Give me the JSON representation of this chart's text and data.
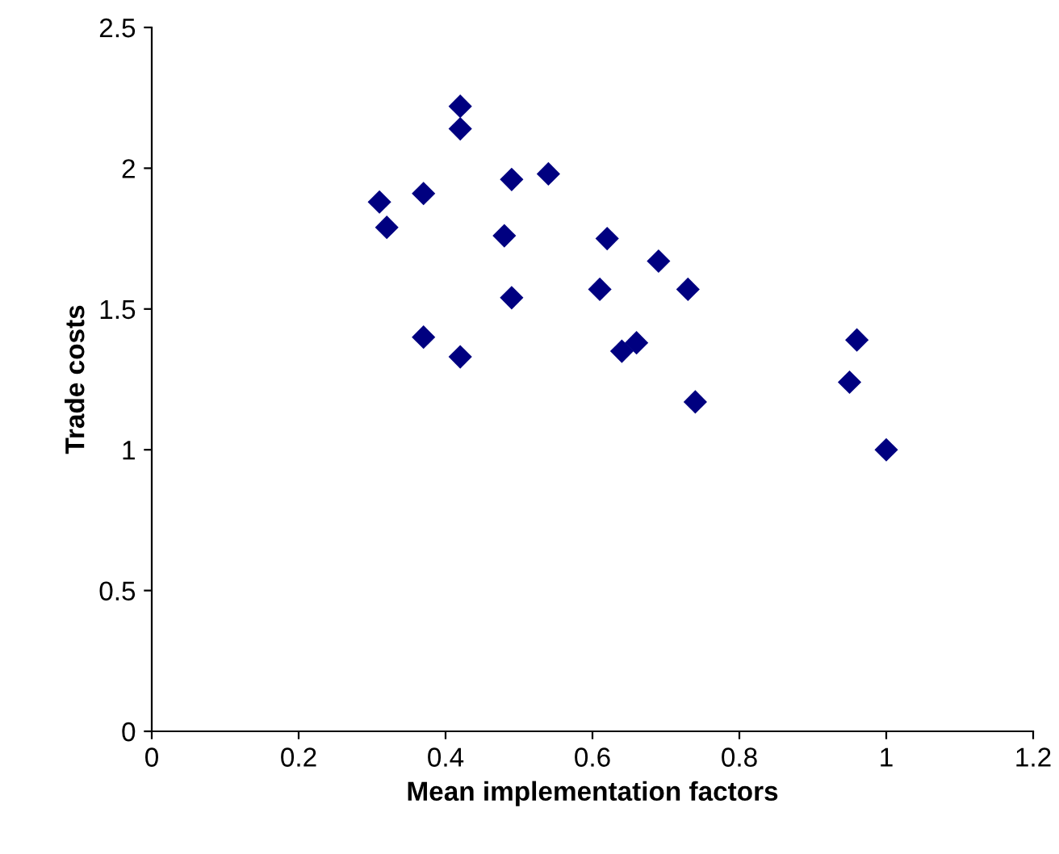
{
  "chart_data": {
    "type": "scatter",
    "xlabel": "Mean implementation factors",
    "ylabel": "Trade costs",
    "x": [
      0.42,
      0.42,
      0.49,
      0.54,
      0.31,
      0.37,
      0.32,
      0.48,
      0.62,
      0.69,
      0.61,
      0.73,
      0.49,
      0.37,
      0.42,
      0.64,
      0.66,
      0.96,
      0.95,
      0.74,
      1.0
    ],
    "values": [
      2.22,
      2.14,
      1.96,
      1.98,
      1.88,
      1.91,
      1.79,
      1.76,
      1.75,
      1.67,
      1.57,
      1.57,
      1.54,
      1.4,
      1.33,
      1.35,
      1.38,
      1.39,
      1.24,
      1.17,
      1.0
    ],
    "color": "#000080",
    "marker": "diamond",
    "xlim": [
      0,
      1.2
    ],
    "xticks": [
      0,
      0.2,
      0.4,
      0.6,
      0.8,
      1,
      1.2
    ],
    "ylim": [
      0,
      2.5
    ],
    "yticks": [
      0,
      0.5,
      1,
      1.5,
      2,
      2.5
    ],
    "grid": false
  }
}
